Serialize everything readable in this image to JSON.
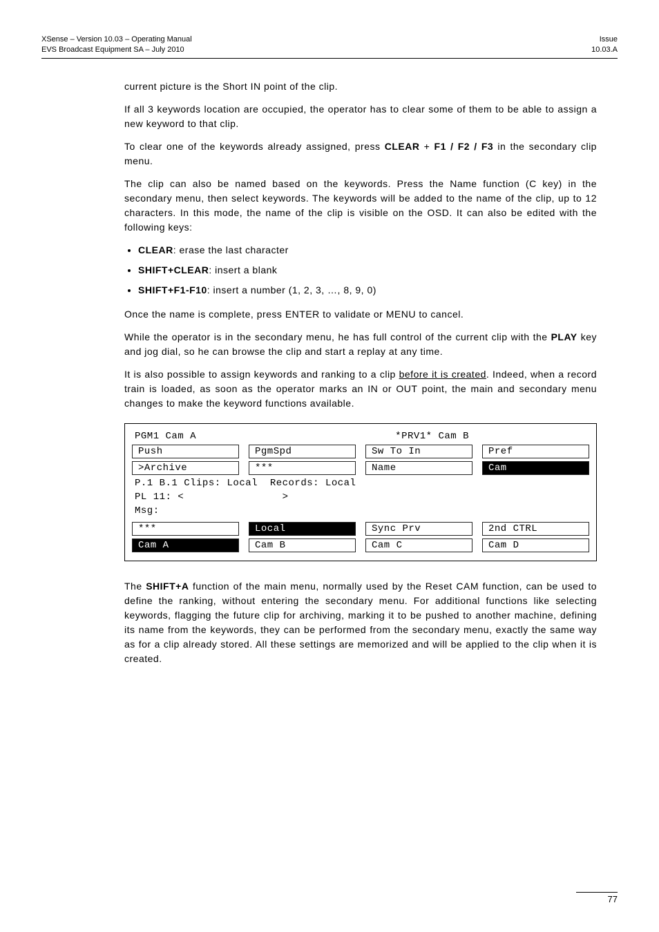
{
  "header": {
    "left_line1": "XSense – Version 10.03 – Operating Manual",
    "left_line2": "EVS Broadcast Equipment SA – July 2010",
    "right_line1": "Issue",
    "right_line2": "10.03.A"
  },
  "paragraphs": {
    "p1": "current picture is the Short IN point of the clip.",
    "p2": "If all 3 keywords location are occupied, the operator has to clear some of them to be able to assign a new keyword to that clip.",
    "p3a": "To clear one of the keywords already assigned, press ",
    "p3_clear": "CLEAR",
    "p3b": " + ",
    "p3_f": "F1 / F2 / F3",
    "p3c": " in the secondary clip menu.",
    "p4": "The clip can also be named based on the keywords. Press the Name function (C key) in the secondary menu, then select keywords. The keywords will be added to the name of the clip, up to 12 characters. In this mode, the name of the clip is visible on the OSD. It can also be edited with the following keys:",
    "li1_b": "CLEAR",
    "li1_t": ": erase the last character",
    "li2_b": "SHIFT+CLEAR",
    "li2_t": ": insert a blank",
    "li3_b": "SHIFT+F1-F10",
    "li3_t": ": insert a number (1, 2, 3, …, 8, 9, 0)",
    "p5": "Once the name is complete, press ENTER to validate or MENU to cancel.",
    "p6a": "While the operator is in the secondary menu, he has full control of the current clip with the ",
    "p6_play": "PLAY",
    "p6b": " key and jog dial, so he can browse the clip and start a replay at any time.",
    "p7a": "It is also possible to assign keywords and ranking to a clip ",
    "p7_u": "before it is created",
    "p7b": ". Indeed, when a record train is loaded, as soon as the operator marks an IN or OUT point, the main and secondary menu changes to make the keyword functions available.",
    "p8a": "The ",
    "p8_b": "SHIFT+A",
    "p8b": " function of the main menu, normally used by the Reset CAM function, can be used to define the ranking, without entering the secondary menu. For additional functions like selecting keywords, flagging the future clip for archiving, marking it to be pushed to another machine, defining its name from the keywords, they can be performed from the secondary menu, exactly the same way as for a clip already stored. All these settings are memorized and will be applied to the clip when it is created."
  },
  "osd": {
    "top_left": "PGM1 Cam A",
    "top_right": "*PRV1* Cam B",
    "row1": [
      {
        "label": "Push",
        "inv": false
      },
      {
        "label": "PgmSpd",
        "inv": false
      },
      {
        "label": "Sw To In",
        "inv": false
      },
      {
        "label": "Pref",
        "inv": false
      }
    ],
    "row2": [
      {
        "label": ">Archive",
        "inv": false
      },
      {
        "label": "***",
        "inv": false
      },
      {
        "label": "Name",
        "inv": false
      },
      {
        "label": "Cam",
        "inv": true
      }
    ],
    "mid1": "P.1 B.1 Clips: Local  Records: Local",
    "mid2": "PL 11: <                >",
    "mid3": "Msg:",
    "row3": [
      {
        "label": "***",
        "inv": false
      },
      {
        "label": "Local",
        "inv": true
      },
      {
        "label": "Sync Prv",
        "inv": false
      },
      {
        "label": "2nd CTRL",
        "inv": false
      }
    ],
    "row4": [
      {
        "label": "Cam A",
        "inv": true
      },
      {
        "label": "Cam B",
        "inv": false
      },
      {
        "label": "Cam C",
        "inv": false
      },
      {
        "label": "Cam D",
        "inv": false
      }
    ]
  },
  "footer": {
    "page": "77"
  }
}
